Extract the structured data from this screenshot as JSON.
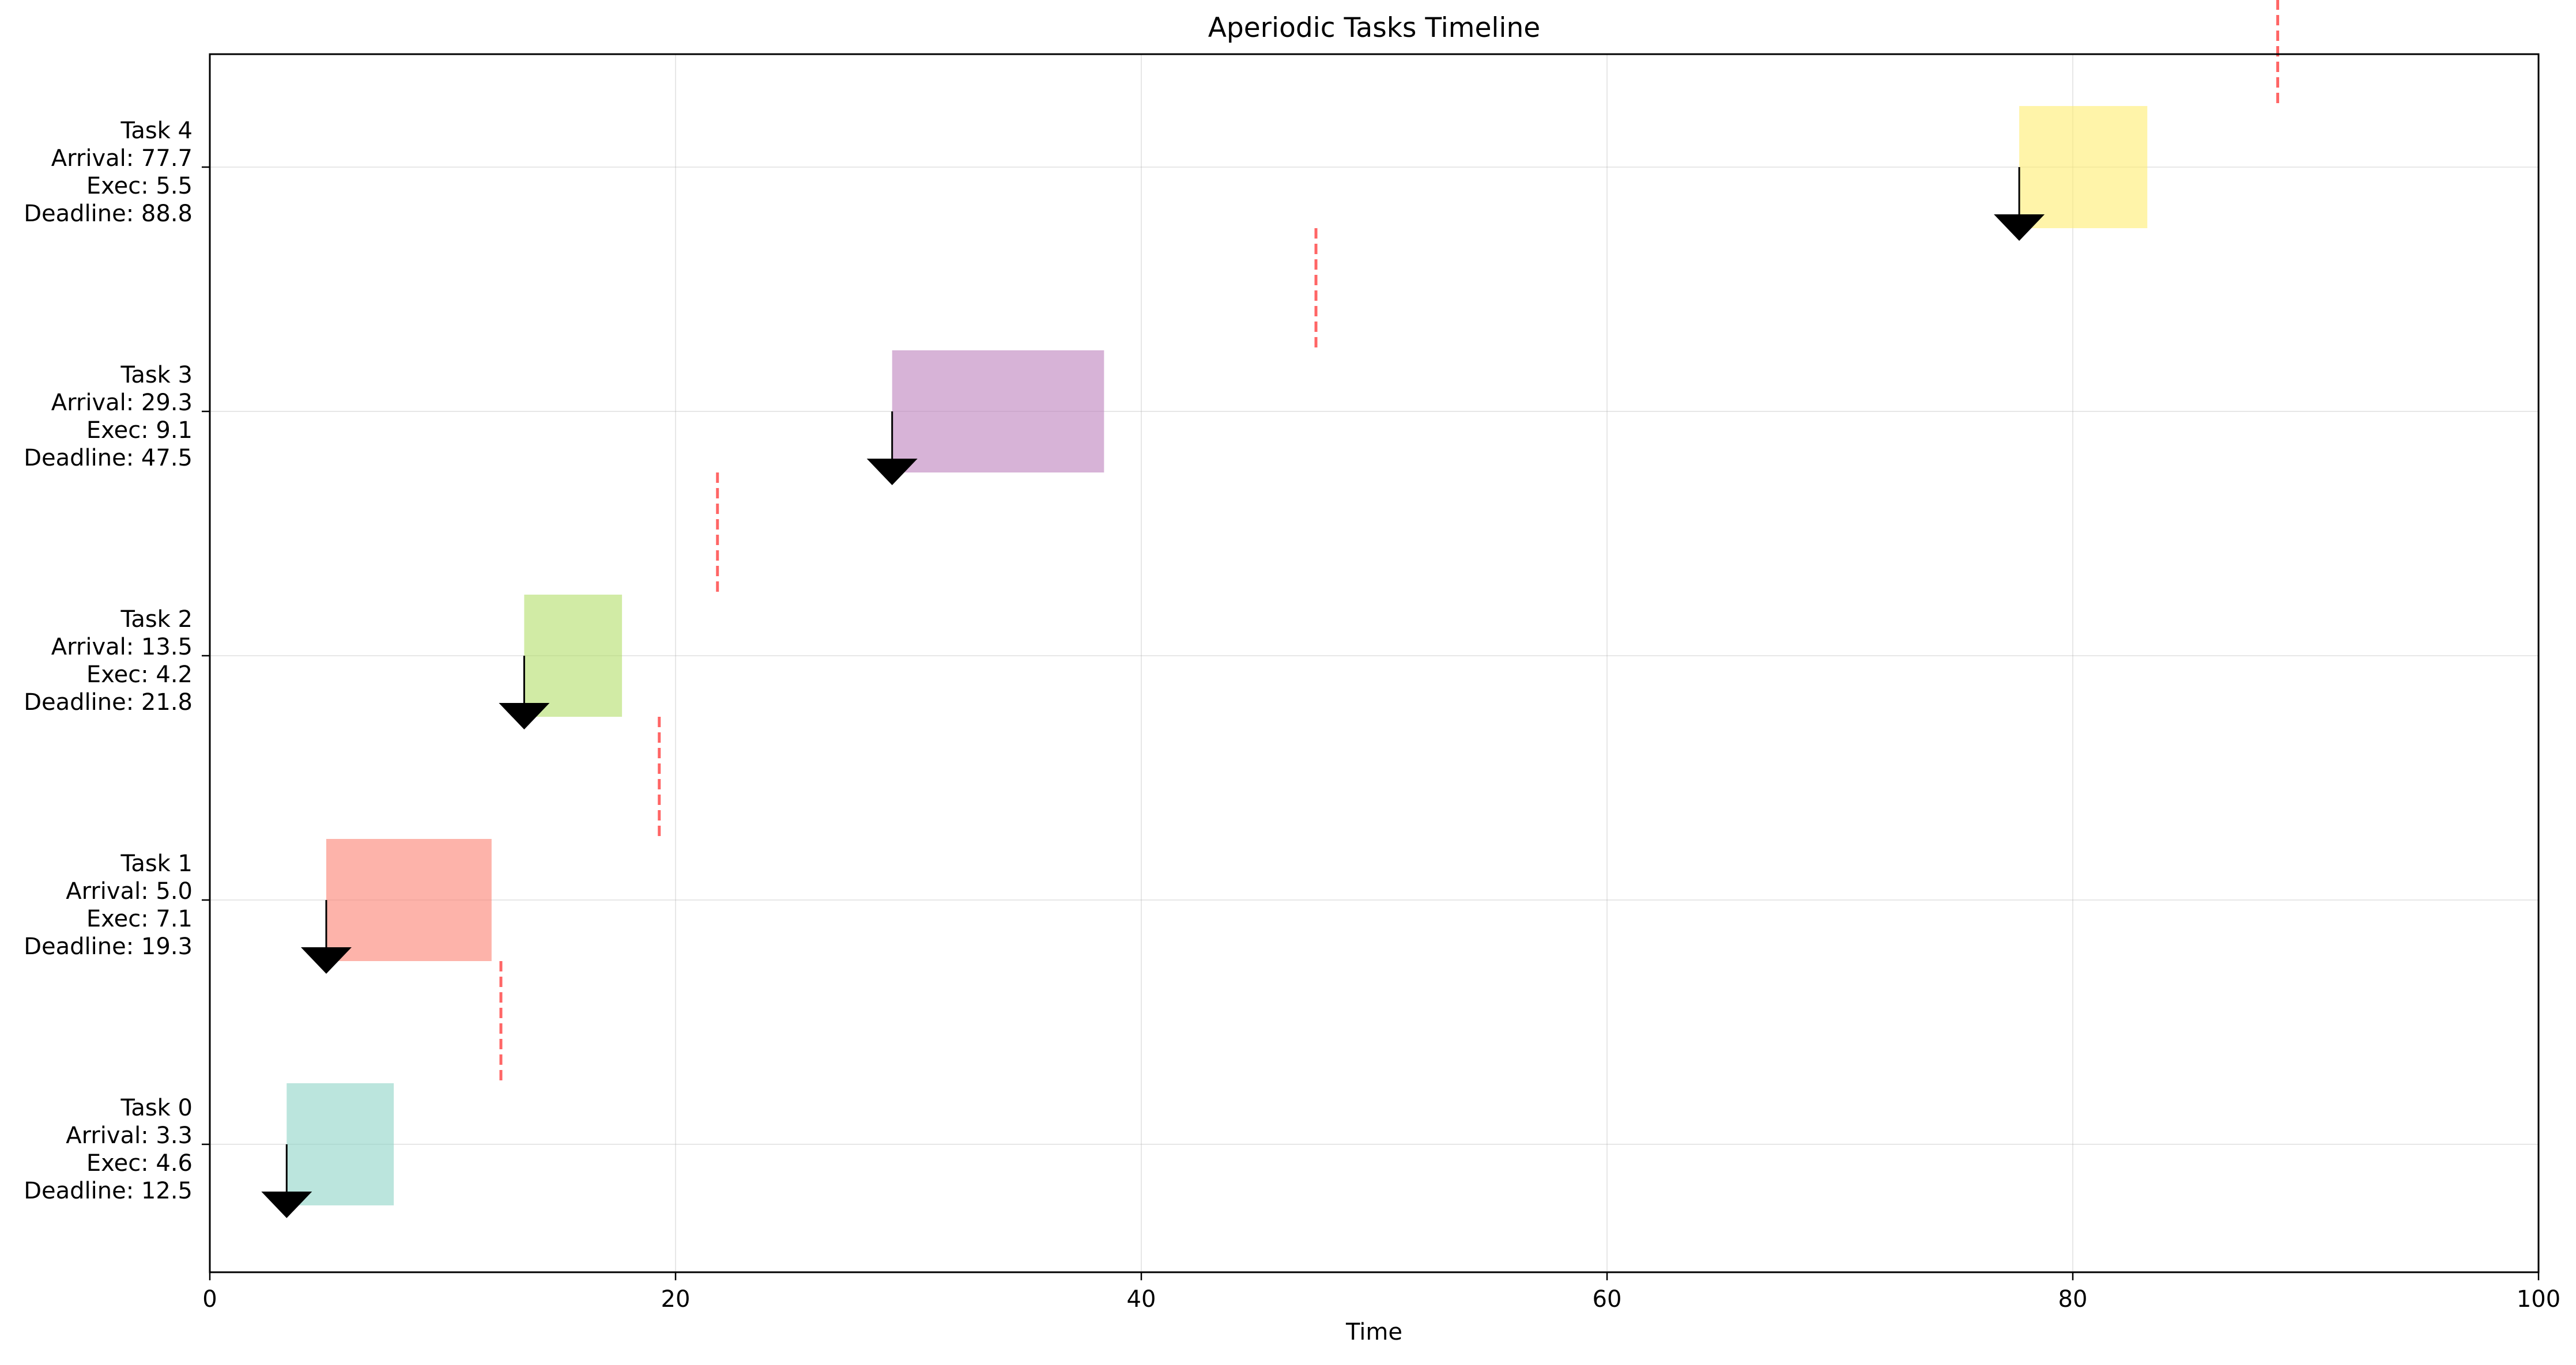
{
  "chart_data": {
    "type": "gantt",
    "title": "Aperiodic Tasks Timeline",
    "xlabel": "Time",
    "ylabel": "",
    "xlim": [
      0,
      100
    ],
    "xticks": [
      0,
      20,
      40,
      60,
      80,
      100
    ],
    "grid": true,
    "tasks": [
      {
        "name": "Task 0",
        "arrival": 3.3,
        "exec": 4.6,
        "deadline": 12.5,
        "color": "#8dd3c7",
        "label_lines": [
          "Task 0",
          "Arrival: 3.3",
          "Exec: 4.6",
          "Deadline: 12.5"
        ]
      },
      {
        "name": "Task 1",
        "arrival": 5.0,
        "exec": 7.1,
        "deadline": 19.3,
        "color": "#fb8072",
        "label_lines": [
          "Task 1",
          "Arrival: 5.0",
          "Exec: 7.1",
          "Deadline: 19.3"
        ]
      },
      {
        "name": "Task 2",
        "arrival": 13.5,
        "exec": 4.2,
        "deadline": 21.8,
        "color": "#b3de69",
        "label_lines": [
          "Task 2",
          "Arrival: 13.5",
          "Exec: 4.2",
          "Deadline: 21.8"
        ]
      },
      {
        "name": "Task 3",
        "arrival": 29.3,
        "exec": 9.1,
        "deadline": 47.5,
        "color": "#bc80bd",
        "label_lines": [
          "Task 3",
          "Arrival: 29.3",
          "Exec: 9.1",
          "Deadline: 47.5"
        ]
      },
      {
        "name": "Task 4",
        "arrival": 77.7,
        "exec": 5.5,
        "deadline": 88.8,
        "color": "#ffed6f",
        "label_lines": [
          "Task 4",
          "Arrival: 77.7",
          "Exec: 5.5",
          "Deadline: 88.8"
        ]
      }
    ],
    "deadline_marker_color": "#ff0000",
    "arrival_marker_color": "#000000"
  }
}
